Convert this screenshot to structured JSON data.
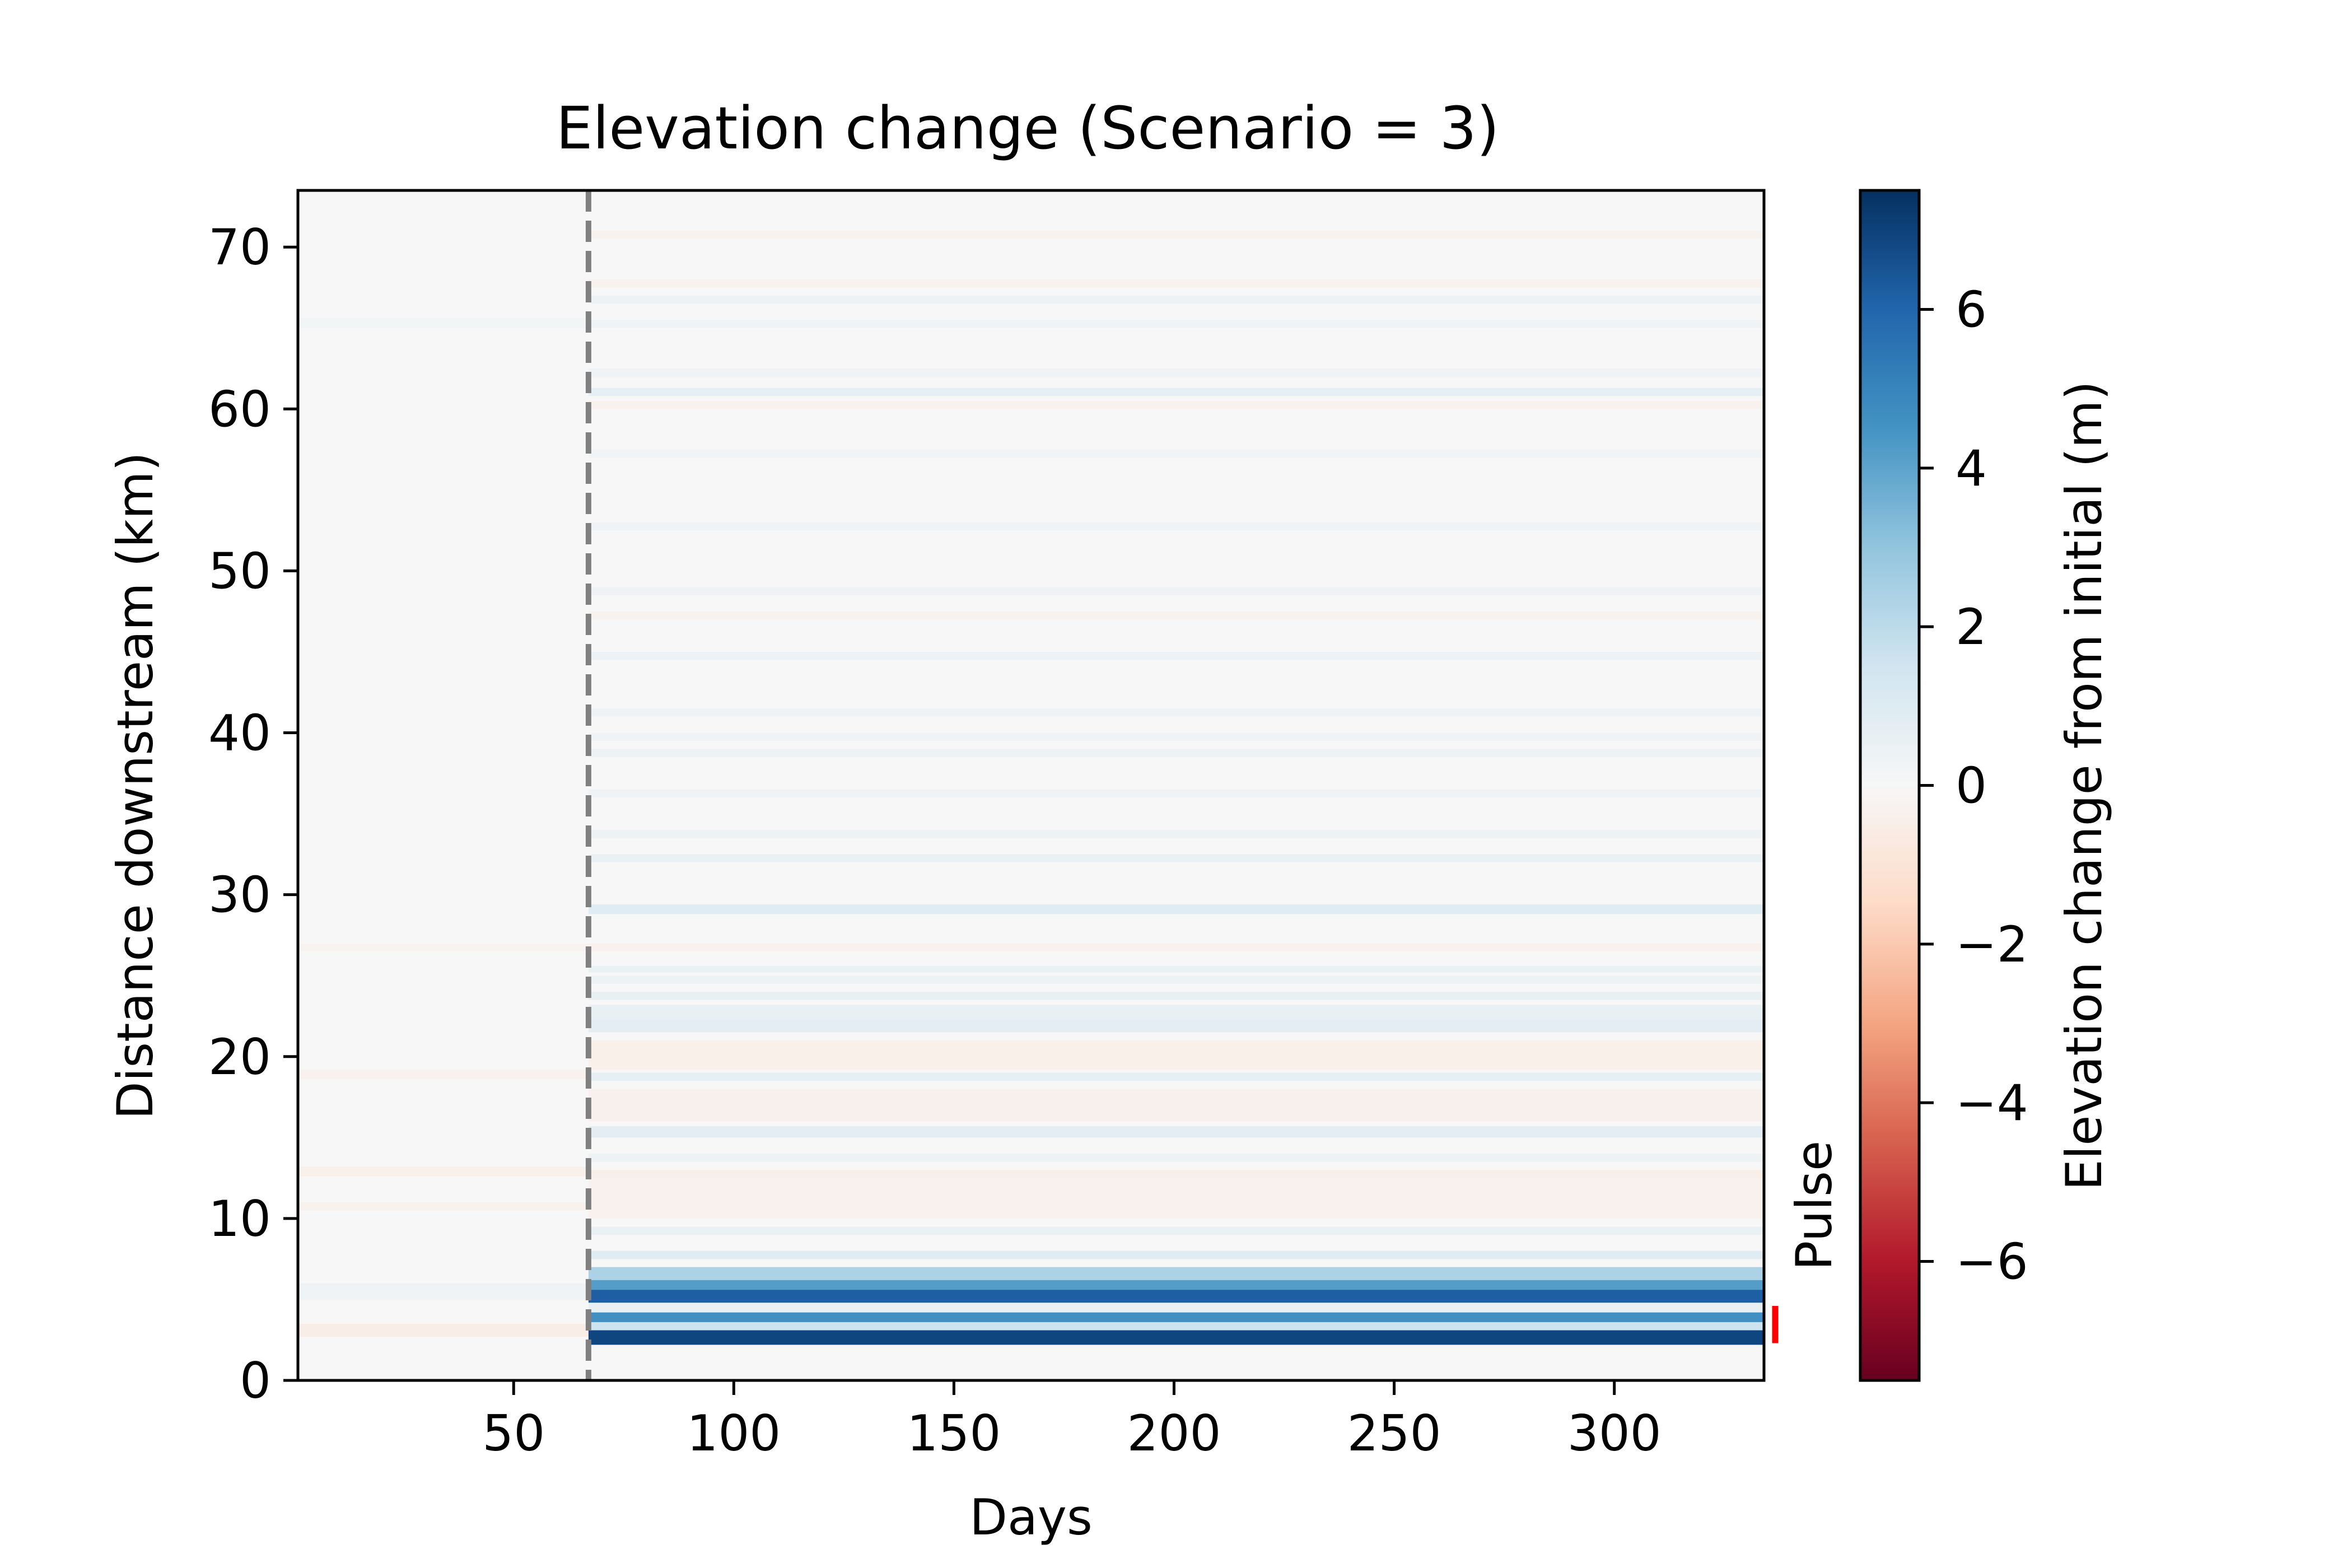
{
  "chart_data": {
    "type": "heatmap",
    "title": "Elevation change (Scenario = 3)",
    "xlabel": "Days",
    "ylabel": "Distance downstream (km)",
    "xlim": [
      1,
      334
    ],
    "ylim": [
      0,
      73.5
    ],
    "xticks": [
      50,
      100,
      150,
      200,
      250,
      300
    ],
    "yticks": [
      0,
      10,
      20,
      30,
      40,
      50,
      60,
      70
    ],
    "colormap": "RdBu",
    "colorbar": {
      "label": "Elevation change from initial (m)",
      "vmin": -7.5,
      "vmax": 7.5,
      "ticks": [
        -6,
        -4,
        -2,
        0,
        2,
        4,
        6
      ]
    },
    "colors": {
      "low": "#67001f",
      "mid": "#f7f7f7",
      "high": "#053061",
      "marker_line": "#808080",
      "annotation": "#ff0000"
    },
    "pulse_day": 67,
    "annotation": {
      "text": "Pulse",
      "y_range_km": [
        2.3,
        4.6
      ]
    },
    "pre_pulse_bands": [
      {
        "y0": 2.7,
        "y1": 3.5,
        "value": -0.5
      },
      {
        "y0": 5.0,
        "y1": 6.0,
        "value": 0.3
      },
      {
        "y0": 10.5,
        "y1": 11.0,
        "value": -0.3
      },
      {
        "y0": 12.6,
        "y1": 13.2,
        "value": -0.4
      },
      {
        "y0": 18.6,
        "y1": 19.2,
        "value": -0.3
      },
      {
        "y0": 26.5,
        "y1": 27.0,
        "value": -0.2
      },
      {
        "y0": 65.0,
        "y1": 65.6,
        "value": 0.2
      }
    ],
    "bands": [
      {
        "y0": 2.2,
        "y1": 3.1,
        "value": 6.9
      },
      {
        "y0": 3.1,
        "y1": 3.6,
        "value": 1.6
      },
      {
        "y0": 3.6,
        "y1": 4.2,
        "value": 4.6
      },
      {
        "y0": 4.2,
        "y1": 4.8,
        "value": 0.6
      },
      {
        "y0": 4.8,
        "y1": 5.6,
        "value": 6.2
      },
      {
        "y0": 5.6,
        "y1": 6.2,
        "value": 4.2
      },
      {
        "y0": 6.2,
        "y1": 7.0,
        "value": 2.4
      },
      {
        "y0": 7.5,
        "y1": 8.0,
        "value": 0.9
      },
      {
        "y0": 9.0,
        "y1": 9.5,
        "value": 0.5
      },
      {
        "y0": 10.0,
        "y1": 11.0,
        "value": -0.3
      },
      {
        "y0": 11.0,
        "y1": 12.5,
        "value": -0.3
      },
      {
        "y0": 12.5,
        "y1": 13.0,
        "value": -0.45
      },
      {
        "y0": 13.5,
        "y1": 14.0,
        "value": 0.4
      },
      {
        "y0": 15.0,
        "y1": 15.7,
        "value": 0.8
      },
      {
        "y0": 16.0,
        "y1": 18.0,
        "value": -0.35
      },
      {
        "y0": 18.5,
        "y1": 19.0,
        "value": 0.7
      },
      {
        "y0": 19.2,
        "y1": 21.0,
        "value": -0.4
      },
      {
        "y0": 21.5,
        "y1": 22.3,
        "value": 0.8
      },
      {
        "y0": 22.3,
        "y1": 23.2,
        "value": 0.55
      },
      {
        "y0": 23.5,
        "y1": 24.0,
        "value": 0.6
      },
      {
        "y0": 24.5,
        "y1": 25.0,
        "value": 0.4
      },
      {
        "y0": 25.2,
        "y1": 25.6,
        "value": 0.5
      },
      {
        "y0": 26.5,
        "y1": 27.0,
        "value": -0.3
      },
      {
        "y0": 28.8,
        "y1": 29.4,
        "value": 0.9
      },
      {
        "y0": 32.0,
        "y1": 32.5,
        "value": 0.5
      },
      {
        "y0": 33.5,
        "y1": 34.0,
        "value": 0.4
      },
      {
        "y0": 36.0,
        "y1": 36.5,
        "value": 0.3
      },
      {
        "y0": 38.5,
        "y1": 39.0,
        "value": 0.4
      },
      {
        "y0": 39.5,
        "y1": 40.0,
        "value": 0.3
      },
      {
        "y0": 41.0,
        "y1": 41.5,
        "value": 0.3
      },
      {
        "y0": 44.5,
        "y1": 45.0,
        "value": 0.45
      },
      {
        "y0": 47.0,
        "y1": 47.5,
        "value": -0.25
      },
      {
        "y0": 48.5,
        "y1": 49.0,
        "value": 0.3
      },
      {
        "y0": 52.5,
        "y1": 53.0,
        "value": 0.3
      },
      {
        "y0": 57.0,
        "y1": 57.5,
        "value": 0.25
      },
      {
        "y0": 60.0,
        "y1": 60.5,
        "value": -0.3
      },
      {
        "y0": 60.8,
        "y1": 61.3,
        "value": 0.7
      },
      {
        "y0": 62.0,
        "y1": 62.5,
        "value": 0.3
      },
      {
        "y0": 65.0,
        "y1": 65.5,
        "value": 0.3
      },
      {
        "y0": 66.5,
        "y1": 67.0,
        "value": 0.4
      },
      {
        "y0": 67.5,
        "y1": 68.0,
        "value": -0.3
      },
      {
        "y0": 70.5,
        "y1": 71.0,
        "value": -0.25
      }
    ]
  }
}
